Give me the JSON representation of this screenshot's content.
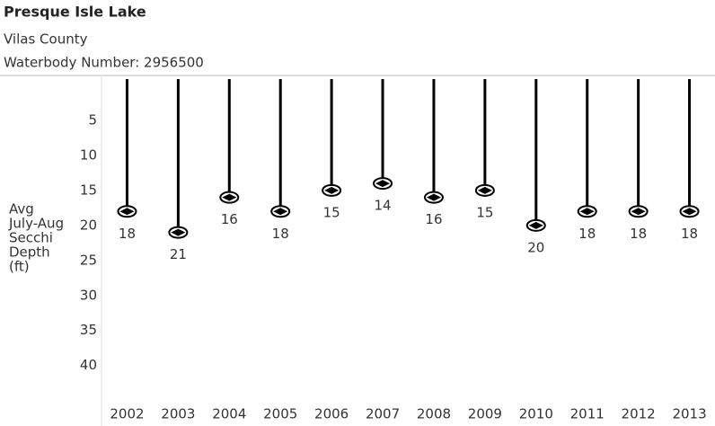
{
  "chart_data": {
    "type": "lollipop",
    "title": "Presque Isle Lake",
    "subtitle": [
      "Vilas County",
      "Waterbody Number: 2956500"
    ],
    "ylabel": [
      "Avg",
      "July-Aug",
      "Secchi",
      "Depth",
      "(ft)"
    ],
    "categories": [
      "2002",
      "2003",
      "2004",
      "2005",
      "2006",
      "2007",
      "2008",
      "2009",
      "2010",
      "2011",
      "2012",
      "2013"
    ],
    "values": [
      18,
      21,
      16,
      18,
      15,
      14,
      16,
      15,
      20,
      18,
      18,
      18
    ],
    "color": "#000000",
    "ylim": [
      0,
      48
    ],
    "yinverted": true,
    "yticks": [
      5,
      10,
      15,
      20,
      25,
      30,
      35,
      40
    ]
  }
}
